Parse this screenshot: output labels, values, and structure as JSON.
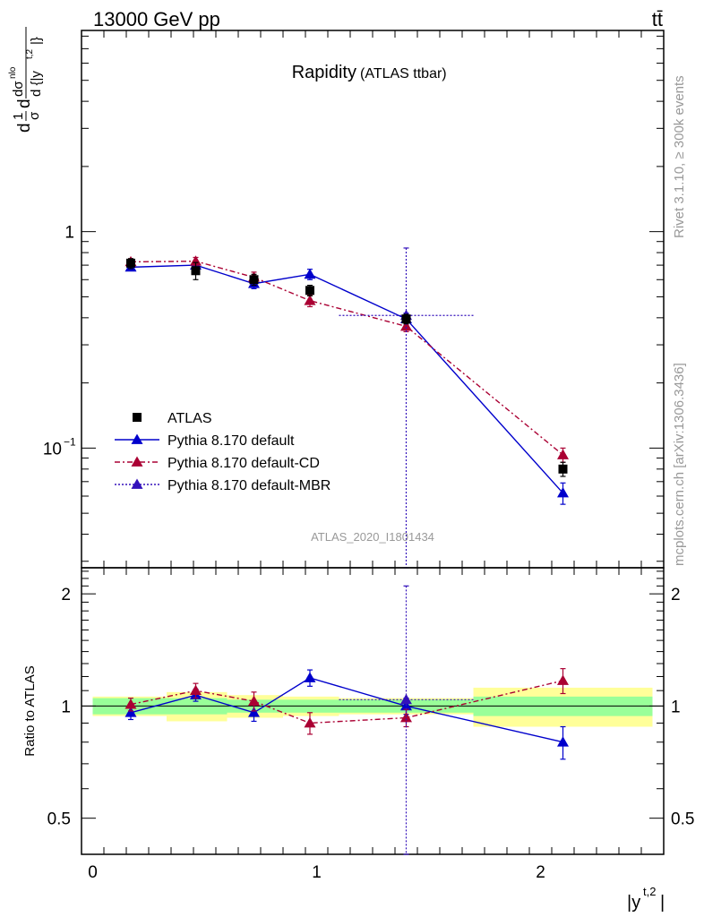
{
  "header": {
    "left": "13000 GeV pp",
    "right": "tt̄"
  },
  "side_labels": {
    "rivet": "Rivet 3.1.10, ≥ 300k events",
    "mcplots": "mcplots.cern.ch [arXiv:1306.3436]"
  },
  "colors": {
    "atlas": "#000000",
    "default": "#0000cc",
    "cd": "#aa0033",
    "mbr": "#3311bb",
    "band_inner": "#99ff99",
    "band_outer": "#ffff99"
  },
  "chart_data": {
    "type": "line",
    "title": "Rapidity",
    "subtitle": "(ATLAS ttbar)",
    "watermark": "ATLAS_2020_I1801434",
    "xlabel": "|y^{t,2}|",
    "ylabel": "d 1/σ dσ^{nlo}/d{|y^{t,2}|}",
    "ratio_ylabel": "Ratio to ATLAS",
    "xlim": [
      -0.05,
      2.55
    ],
    "ylim": [
      0.028,
      8.5
    ],
    "yscale": "log",
    "ratio_ylim": [
      0.4,
      2.35
    ],
    "ratio_yscale": "log",
    "x_ticks": [
      0,
      1,
      2
    ],
    "y_ticks": [
      0.1,
      1
    ],
    "ratio_y_ticks": [
      0.5,
      1,
      2
    ],
    "legend_position": "bottom-left",
    "series": [
      {
        "name": "ATLAS",
        "marker": "square",
        "color": "#000000",
        "points": [
          {
            "x": 0.17,
            "y": 0.715,
            "ylo": 0.675,
            "yhi": 0.75,
            "xlo": 0.0,
            "xhi": 0.33
          },
          {
            "x": 0.46,
            "y": 0.66,
            "ylo": 0.6,
            "yhi": 0.72,
            "xlo": 0.33,
            "xhi": 0.6
          },
          {
            "x": 0.72,
            "y": 0.6,
            "ylo": 0.565,
            "yhi": 0.635,
            "xlo": 0.6,
            "xhi": 0.85
          },
          {
            "x": 0.97,
            "y": 0.535,
            "ylo": 0.505,
            "yhi": 0.565,
            "xlo": 0.85,
            "xhi": 1.1
          },
          {
            "x": 1.4,
            "y": 0.395,
            "ylo": 0.375,
            "yhi": 0.415,
            "xlo": 1.1,
            "xhi": 1.7
          },
          {
            "x": 2.1,
            "y": 0.08,
            "ylo": 0.074,
            "yhi": 0.086,
            "xlo": 1.7,
            "xhi": 2.5
          }
        ],
        "ratio_band_inner": [
          0.05,
          0.05,
          0.04,
          0.04,
          0.04,
          0.06
        ],
        "ratio_band_outer": [
          0.06,
          0.09,
          0.07,
          0.06,
          0.05,
          0.12
        ]
      },
      {
        "name": "Pythia 8.170 default",
        "marker": "triangle",
        "line": "solid",
        "color": "#0000cc",
        "points": [
          {
            "x": 0.17,
            "y": 0.685,
            "ylo": 0.66,
            "yhi": 0.71
          },
          {
            "x": 0.46,
            "y": 0.7,
            "ylo": 0.675,
            "yhi": 0.725
          },
          {
            "x": 0.72,
            "y": 0.575,
            "ylo": 0.545,
            "yhi": 0.605
          },
          {
            "x": 0.97,
            "y": 0.635,
            "ylo": 0.6,
            "yhi": 0.67
          },
          {
            "x": 1.4,
            "y": 0.395,
            "ylo": 0.37,
            "yhi": 0.42
          },
          {
            "x": 2.1,
            "y": 0.062,
            "ylo": 0.055,
            "yhi": 0.069
          }
        ],
        "ratio": [
          {
            "y": 0.96,
            "ylo": 0.92,
            "yhi": 1.0
          },
          {
            "y": 1.07,
            "ylo": 1.03,
            "yhi": 1.11
          },
          {
            "y": 0.96,
            "ylo": 0.91,
            "yhi": 1.01
          },
          {
            "y": 1.19,
            "ylo": 1.13,
            "yhi": 1.25
          },
          {
            "y": 1.0,
            "ylo": 0.95,
            "yhi": 1.05
          },
          {
            "y": 0.8,
            "ylo": 0.72,
            "yhi": 0.88
          }
        ]
      },
      {
        "name": "Pythia 8.170 default-CD",
        "marker": "triangle",
        "line": "dashdot",
        "color": "#aa0033",
        "points": [
          {
            "x": 0.17,
            "y": 0.725,
            "ylo": 0.7,
            "yhi": 0.75
          },
          {
            "x": 0.46,
            "y": 0.73,
            "ylo": 0.7,
            "yhi": 0.76
          },
          {
            "x": 0.72,
            "y": 0.615,
            "ylo": 0.58,
            "yhi": 0.65
          },
          {
            "x": 0.97,
            "y": 0.48,
            "ylo": 0.45,
            "yhi": 0.51
          },
          {
            "x": 1.4,
            "y": 0.365,
            "ylo": 0.345,
            "yhi": 0.385
          },
          {
            "x": 2.1,
            "y": 0.093,
            "ylo": 0.086,
            "yhi": 0.1
          }
        ],
        "ratio": [
          {
            "y": 1.01,
            "ylo": 0.97,
            "yhi": 1.05
          },
          {
            "y": 1.1,
            "ylo": 1.05,
            "yhi": 1.15
          },
          {
            "y": 1.03,
            "ylo": 0.97,
            "yhi": 1.09
          },
          {
            "y": 0.9,
            "ylo": 0.84,
            "yhi": 0.96
          },
          {
            "y": 0.93,
            "ylo": 0.88,
            "yhi": 0.98
          },
          {
            "y": 1.17,
            "ylo": 1.08,
            "yhi": 1.26
          }
        ]
      },
      {
        "name": "Pythia 8.170 default-MBR",
        "marker": "triangle",
        "line": "dotted",
        "color": "#3311bb",
        "points": [
          {
            "x": 1.4,
            "y": 0.41,
            "ylo": 0.02,
            "yhi": 0.84,
            "xlo": 1.1,
            "xhi": 1.7
          }
        ],
        "ratio": [
          {
            "x": 1.4,
            "y": 1.04,
            "ylo": 0.3,
            "yhi": 2.1,
            "xlo": 1.1,
            "xhi": 1.7
          }
        ]
      }
    ]
  }
}
